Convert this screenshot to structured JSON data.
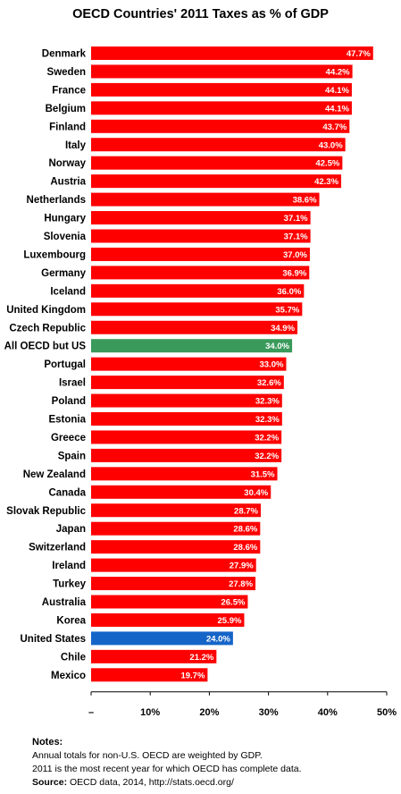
{
  "chart_data": {
    "type": "bar",
    "orientation": "horizontal",
    "title": "OECD Countries' 2011 Taxes as % of GDP",
    "categories": [
      "Denmark",
      "Sweden",
      "France",
      "Belgium",
      "Finland",
      "Italy",
      "Norway",
      "Austria",
      "Netherlands",
      "Hungary",
      "Slovenia",
      "Luxembourg",
      "Germany",
      "Iceland",
      "United Kingdom",
      "Czech Republic",
      "All OECD but US",
      "Portugal",
      "Israel",
      "Poland",
      "Estonia",
      "Greece",
      "Spain",
      "New Zealand",
      "Canada",
      "Slovak Republic",
      "Japan",
      "Switzerland",
      "Ireland",
      "Turkey",
      "Australia",
      "Korea",
      "United States",
      "Chile",
      "Mexico"
    ],
    "values": [
      47.7,
      44.2,
      44.1,
      44.1,
      43.7,
      43.0,
      42.5,
      42.3,
      38.6,
      37.1,
      37.1,
      37.0,
      36.9,
      36.0,
      35.7,
      34.9,
      34.0,
      33.0,
      32.6,
      32.3,
      32.3,
      32.2,
      32.2,
      31.5,
      30.4,
      28.7,
      28.6,
      28.6,
      27.9,
      27.8,
      26.5,
      25.9,
      24.0,
      21.2,
      19.7
    ],
    "value_labels": [
      "47.7%",
      "44.2%",
      "44.1%",
      "44.1%",
      "43.7%",
      "43.0%",
      "42.5%",
      "42.3%",
      "38.6%",
      "37.1%",
      "37.1%",
      "37.0%",
      "36.9%",
      "36.0%",
      "35.7%",
      "34.9%",
      "34.0%",
      "33.0%",
      "32.6%",
      "32.3%",
      "32.3%",
      "32.2%",
      "32.2%",
      "31.5%",
      "30.4%",
      "28.7%",
      "28.6%",
      "28.6%",
      "27.9%",
      "27.8%",
      "26.5%",
      "25.9%",
      "24.0%",
      "21.2%",
      "19.7%"
    ],
    "highlight": {
      "All OECD but US": "#3a9a5b",
      "United States": "#1565c8"
    },
    "default_color": "#ff0000",
    "xlim": [
      0,
      50
    ],
    "x_ticks": [
      "–",
      "10%",
      "20%",
      "30%",
      "40%",
      "50%"
    ],
    "grid": false,
    "legend": "none"
  },
  "notes": {
    "heading": "Notes:",
    "line1": "Annual totals for non-U.S. OECD are weighted by GDP.",
    "line2": "2011 is the most recent year for which OECD has complete data.",
    "source_label": "Source:",
    "source_text": " OECD data, 2014, http://stats.oecd.org/"
  }
}
